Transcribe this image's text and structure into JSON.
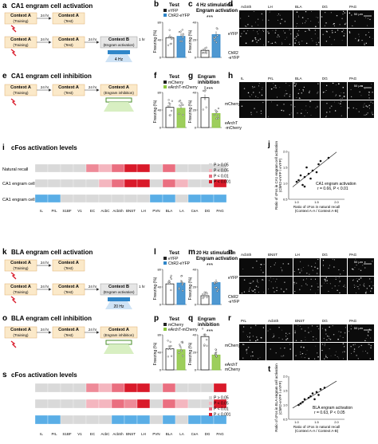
{
  "panels": {
    "a": {
      "letter": "a",
      "title": "CA1 engram cell activation"
    },
    "b": {
      "letter": "b",
      "title": "Test"
    },
    "c": {
      "letter": "c",
      "title": "4 Hz stimulation",
      "subtitle": "Engram activation"
    },
    "d": {
      "letter": "d"
    },
    "e": {
      "letter": "e",
      "title": "CA1 engram cell inhibition"
    },
    "f": {
      "letter": "f",
      "title": "Test"
    },
    "g": {
      "letter": "g",
      "title": "Engram",
      "subtitle": "inhibition"
    },
    "h": {
      "letter": "h"
    },
    "i": {
      "letter": "i",
      "title": "cFos activation levels"
    },
    "j": {
      "letter": "j"
    },
    "k": {
      "letter": "k",
      "title": "BLA engram cell activation"
    },
    "l": {
      "letter": "l",
      "title": "Test"
    },
    "m": {
      "letter": "m",
      "title": "20 Hz stimulation",
      "subtitle": "Engram activation"
    },
    "n": {
      "letter": "n"
    },
    "o": {
      "letter": "o",
      "title": "BLA engram cell inhibition"
    },
    "p": {
      "letter": "p",
      "title": "Test"
    },
    "q": {
      "letter": "q",
      "title": "Engram",
      "subtitle": "inhibition"
    },
    "r": {
      "letter": "r"
    },
    "s": {
      "letter": "s",
      "title": "cFos activation levels"
    },
    "t": {
      "letter": "t"
    }
  },
  "schematic": {
    "context_a": "Context A",
    "context_b": "Context B",
    "training": "(Training)",
    "test": "(Test)",
    "engram_activation": "(Engram activation)",
    "engram_inhibition": "(Engram inhibition)",
    "interval_24": "24 hr",
    "interval_1": "1 hr",
    "stim_4hz": "4 Hz",
    "stim_20hz": "20 Hz"
  },
  "bar_panels": {
    "ylabel": "Freezing (%)",
    "sig": "***",
    "legend_eyfp": "eYFP",
    "legend_chr2": "ChR2-eYFP",
    "legend_mcherry": "mCherry",
    "legend_earcht": "eArchT-mCherry",
    "colors": {
      "eyfp": "#222222",
      "chr2": "#2f86c9",
      "mcherry": "#222222",
      "earcht": "#8cc63f"
    }
  },
  "chart_data": [
    {
      "type": "bar",
      "panel": "b",
      "categories": [
        "eYFP",
        "ChR2-eYFP"
      ],
      "values": [
        45,
        48
      ],
      "ylim": [
        0,
        80
      ]
    },
    {
      "type": "bar",
      "panel": "c",
      "categories": [
        "eYFP",
        "ChR2-eYFP"
      ],
      "values": [
        8,
        26
      ],
      "ylim": [
        0,
        40
      ]
    },
    {
      "type": "bar",
      "panel": "f",
      "categories": [
        "mCherry",
        "eArchT-mCherry"
      ],
      "values": [
        46,
        44
      ],
      "ylim": [
        0,
        80
      ]
    },
    {
      "type": "bar",
      "panel": "g",
      "categories": [
        "mCherry",
        "eArchT-mCherry"
      ],
      "values": [
        34,
        16
      ],
      "ylim": [
        0,
        40
      ]
    },
    {
      "type": "bar",
      "panel": "l",
      "categories": [
        "eYFP",
        "ChR2-eYFP"
      ],
      "values": [
        47,
        49
      ],
      "ylim": [
        0,
        80
      ]
    },
    {
      "type": "bar",
      "panel": "m",
      "categories": [
        "eYFP",
        "ChR2-eYFP"
      ],
      "values": [
        10,
        25
      ],
      "ylim": [
        0,
        40
      ]
    },
    {
      "type": "bar",
      "panel": "p",
      "categories": [
        "mCherry",
        "eArchT-mCherry"
      ],
      "values": [
        48,
        46
      ],
      "ylim": [
        0,
        80
      ]
    },
    {
      "type": "bar",
      "panel": "q",
      "categories": [
        "mCherry",
        "eArchT-mCherry"
      ],
      "values": [
        38,
        17
      ],
      "ylim": [
        0,
        40
      ]
    },
    {
      "type": "heatmap",
      "panel": "i",
      "rows": [
        "Natural recall",
        "CA1 engram cell activation",
        "CA1 engram cell inhibition"
      ],
      "columns": [
        "IL",
        "PrL",
        "S1BF",
        "V1",
        "EC",
        "AcbC",
        "AcbSh",
        "BNST",
        "LH",
        "PVN",
        "BLA",
        "LA",
        "CeA",
        "DG",
        "PAG"
      ],
      "levels": [
        [
          0,
          0,
          0,
          0,
          2,
          1,
          3,
          4,
          4,
          0,
          3,
          0,
          0,
          0,
          0
        ],
        [
          0,
          0,
          0,
          0,
          0,
          1,
          3,
          4,
          4,
          0,
          3,
          1,
          0,
          0,
          4
        ],
        [
          5,
          5,
          0,
          0,
          0,
          0,
          0,
          0,
          0,
          5,
          5,
          0,
          5,
          5,
          5
        ]
      ]
    },
    {
      "type": "scatter",
      "panel": "j",
      "xlabel": "Ratio of cFos in natural recall (Context A-A / Context A-B)",
      "ylabel": "Ratio of cFos in CA1 engram cell activation (ChR2-eYFP / eYFP)",
      "xlim": [
        0.8,
        2.2
      ],
      "ylim": [
        0.5,
        2.0
      ],
      "points": [
        [
          1.0,
          1.05
        ],
        [
          1.05,
          1.1
        ],
        [
          1.1,
          1.25
        ],
        [
          1.15,
          0.95
        ],
        [
          1.2,
          1.2
        ],
        [
          1.25,
          1.5
        ],
        [
          1.3,
          1.3
        ],
        [
          1.35,
          1.15
        ],
        [
          1.4,
          1.4
        ],
        [
          1.5,
          1.35
        ],
        [
          1.55,
          1.6
        ],
        [
          1.6,
          1.7
        ],
        [
          1.8,
          1.8
        ],
        [
          1.2,
          0.9
        ]
      ],
      "annotation": "CA1 engram activation",
      "stat": "r = 0.66, P < 0.01"
    },
    {
      "type": "heatmap",
      "panel": "s",
      "rows": [
        "Natural recall",
        "BLA engram cell activation",
        "BLA engram cell inhibition"
      ],
      "columns": [
        "IL",
        "PrL",
        "S1BF",
        "V1",
        "EC",
        "AcbC",
        "AcbSh",
        "BNST",
        "LH",
        "PVN",
        "BLA",
        "LA",
        "CeA",
        "DG",
        "PAG"
      ],
      "levels": [
        [
          0,
          0,
          0,
          0,
          2,
          1,
          3,
          4,
          4,
          0,
          3,
          0,
          0,
          0,
          4
        ],
        [
          0,
          0,
          0,
          0,
          1,
          1,
          3,
          2,
          4,
          0,
          3,
          1,
          0,
          0,
          4
        ],
        [
          5,
          5,
          0,
          0,
          0,
          0,
          5,
          5,
          5,
          0,
          5,
          0,
          5,
          5,
          5
        ]
      ]
    },
    {
      "type": "scatter",
      "panel": "t",
      "xlabel": "Ratio of cFos in natural recall (Context A-A / Context A-B)",
      "ylabel": "Ratio of cFos in BLA engram cell activation (ChR2-eYFP / eYFP)",
      "xlim": [
        0.8,
        2.2
      ],
      "ylim": [
        0.5,
        2.0
      ],
      "points": [
        [
          1.05,
          1.0
        ],
        [
          1.1,
          1.05
        ],
        [
          1.15,
          1.1
        ],
        [
          1.2,
          1.2
        ],
        [
          1.3,
          1.25
        ],
        [
          1.35,
          1.3
        ],
        [
          1.4,
          1.4
        ],
        [
          1.5,
          1.45
        ],
        [
          1.55,
          1.35
        ],
        [
          1.6,
          1.55
        ],
        [
          1.7,
          1.6
        ],
        [
          1.45,
          1.2
        ]
      ],
      "annotation": "BLA engram activation",
      "stat": "r = 0.63, P < 0.05"
    }
  ],
  "heatmap_legend": [
    {
      "label": "P > 0.05",
      "color": "#d9d9d9"
    },
    {
      "label": "P < 0.05",
      "color": "#f4b6bf"
    },
    {
      "label": "P < 0.01",
      "color": "#ea6f80"
    },
    {
      "label": "P < 0.001",
      "color": "#d91a2a"
    }
  ],
  "heatmap_colors": [
    "#d9d9d9",
    "#f4b6bf",
    "#ee8a98",
    "#ea6f80",
    "#d91a2a",
    "#5aaee6"
  ],
  "micro": {
    "regions_d": [
      "AcbSh",
      "LH",
      "BLA",
      "DG",
      "PAG"
    ],
    "regions_h": [
      "IL",
      "PrL",
      "BLA",
      "DG",
      "PAG"
    ],
    "regions_n": [
      "AcbSh",
      "BNST",
      "LH",
      "DG",
      "PAG"
    ],
    "regions_r": [
      "PrL",
      "AcbSh",
      "BNST",
      "DG",
      "PAG"
    ],
    "eyfp": "eYFP",
    "chr2": "ChR2",
    "chr2b": "-eYFP",
    "mcherry": "mCherry",
    "earcht": "eArchT",
    "earchtb": "-mCherry",
    "scalebar": "50 μm"
  }
}
